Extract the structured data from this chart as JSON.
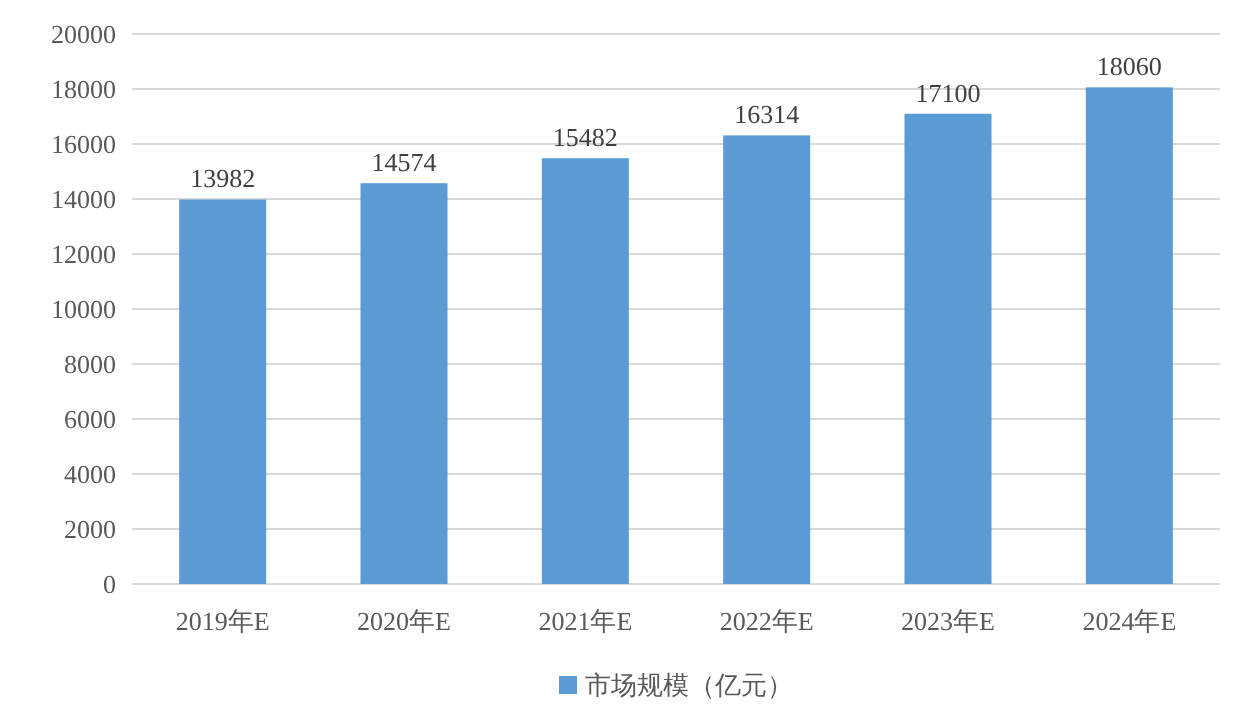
{
  "chart_data": {
    "type": "bar",
    "categories": [
      "2019年E",
      "2020年E",
      "2021年E",
      "2022年E",
      "2023年E",
      "2024年E"
    ],
    "series": [
      {
        "name": "市场规模（亿元）",
        "color": "#5b9bd5",
        "values": [
          13982,
          14574,
          15482,
          16314,
          17100,
          18060
        ]
      }
    ],
    "ylim": [
      0,
      20000
    ],
    "yticks": [
      0,
      2000,
      4000,
      6000,
      8000,
      10000,
      12000,
      14000,
      16000,
      18000,
      20000
    ],
    "grid": "y",
    "legend": "bottom",
    "data_labels": true
  }
}
